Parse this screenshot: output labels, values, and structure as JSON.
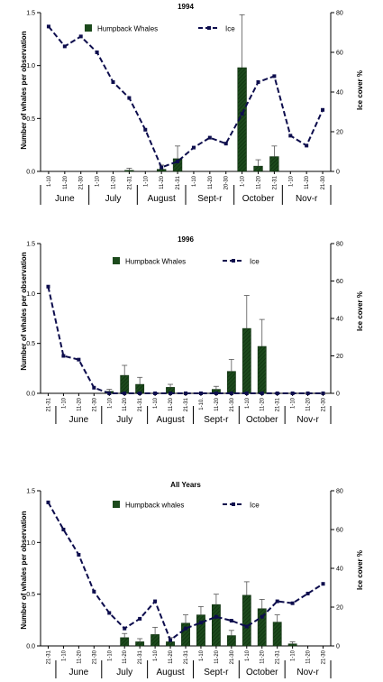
{
  "colors": {
    "bar": "#1c4a1c",
    "bar_dark": "#0c2a0c",
    "line": "#0d0d4d",
    "axis": "#000000"
  },
  "chart_data": [
    {
      "type": "bar+line",
      "title": "1994",
      "ylabel": "Number of whales per observation",
      "y2label": "Ice cover %",
      "ylim": [
        0,
        1.5
      ],
      "y2lim": [
        0,
        80
      ],
      "yticks": [
        "0.0",
        "0.5",
        "1.0",
        "1.5"
      ],
      "y2ticks": [
        "0",
        "20",
        "40",
        "60",
        "80"
      ],
      "legend": {
        "bar": "Humpback Whales",
        "line": "Ice"
      },
      "categories": [
        "1-10",
        "11-20",
        "21-30",
        "1-10",
        "11-20",
        "21-31",
        "1-10",
        "11-20",
        "21-31",
        "1-10",
        "11-20",
        "20-30",
        "1-10",
        "11-20",
        "21-31",
        "1-10",
        "11-20",
        "21-30"
      ],
      "months": [
        {
          "label": "June",
          "start": 0,
          "end": 2
        },
        {
          "label": "July",
          "start": 3,
          "end": 5
        },
        {
          "label": "August",
          "start": 6,
          "end": 8
        },
        {
          "label": "Sept-r",
          "start": 9,
          "end": 11
        },
        {
          "label": "October",
          "start": 12,
          "end": 14
        },
        {
          "label": "Nov-r",
          "start": 15,
          "end": 17
        }
      ],
      "bars": [
        null,
        null,
        null,
        null,
        null,
        0.01,
        null,
        0.02,
        0.12,
        null,
        null,
        null,
        0.98,
        0.05,
        0.14,
        null,
        null,
        null
      ],
      "bar_err": [
        0,
        0,
        0,
        0,
        0,
        0.02,
        0,
        0.04,
        0.12,
        0,
        0,
        0,
        0.5,
        0.06,
        0.1,
        0,
        0,
        0
      ],
      "ice": [
        73,
        63,
        68,
        60,
        45,
        37,
        21,
        2,
        5,
        12,
        17,
        14,
        29,
        45,
        48,
        18,
        13,
        31
      ]
    },
    {
      "type": "bar+line",
      "title": "1996",
      "ylabel": "Number of whales per observation",
      "y2label": "Ice cover %",
      "ylim": [
        0,
        1.5
      ],
      "y2lim": [
        0,
        80
      ],
      "yticks": [
        "0.0",
        "0.5",
        "1.0",
        "1.5"
      ],
      "y2ticks": [
        "0",
        "20",
        "40",
        "60",
        "80"
      ],
      "legend": {
        "bar": "Humpback Whales",
        "line": "Ice"
      },
      "categories": [
        "21-31",
        "1-10",
        "11-20",
        "21-30",
        "1-10",
        "11-20",
        "21-31",
        "1-10",
        "11-20",
        "21-31",
        "1-10.",
        "11-20",
        "21-30",
        "1-10",
        "11-20",
        "21-31",
        "1-10",
        "11-20",
        "21-30"
      ],
      "months": [
        {
          "label": "June",
          "start": 1,
          "end": 3
        },
        {
          "label": "July",
          "start": 4,
          "end": 6
        },
        {
          "label": "August",
          "start": 7,
          "end": 9
        },
        {
          "label": "Sept-r",
          "start": 10,
          "end": 12
        },
        {
          "label": "October",
          "start": 13,
          "end": 15
        },
        {
          "label": "Nov-r",
          "start": 16,
          "end": 18
        }
      ],
      "bars": [
        null,
        null,
        null,
        null,
        0.02,
        0.18,
        0.09,
        null,
        0.06,
        null,
        null,
        0.04,
        0.22,
        0.65,
        0.47,
        null,
        null,
        null,
        null
      ],
      "bar_err": [
        0,
        0,
        0,
        0,
        0.02,
        0.1,
        0.07,
        0,
        0.03,
        0,
        0,
        0.03,
        0.12,
        0.33,
        0.27,
        0,
        0,
        0,
        0
      ],
      "ice": [
        57,
        20,
        18,
        3,
        0,
        0,
        0,
        0,
        0,
        0,
        0,
        0,
        0,
        0,
        0,
        0,
        0,
        0,
        0
      ]
    },
    {
      "type": "bar+line",
      "title": "All Years",
      "ylabel": "Number of whales per observation",
      "y2label": "Ice cover %",
      "ylim": [
        0,
        1.5
      ],
      "y2lim": [
        0,
        80
      ],
      "yticks": [
        "0.0",
        "0.5",
        "1.0",
        "1.5"
      ],
      "y2ticks": [
        "0",
        "20",
        "40",
        "60",
        "80"
      ],
      "legend": {
        "bar": "Humpback whales",
        "line": "Ice"
      },
      "categories": [
        "21-31",
        "1-10",
        "11-20",
        "21-30",
        "1-10",
        "11-20",
        "21-31",
        "1-10",
        "11-20",
        "21-31",
        "1-10",
        "11-20",
        "21-30",
        "1-10",
        "11-20",
        "21-31",
        "1-10",
        "11-20",
        "21-30"
      ],
      "months": [
        {
          "label": "June",
          "start": 1,
          "end": 3
        },
        {
          "label": "July",
          "start": 4,
          "end": 6
        },
        {
          "label": "August",
          "start": 7,
          "end": 9
        },
        {
          "label": "Sept-r",
          "start": 10,
          "end": 12
        },
        {
          "label": "October",
          "start": 13,
          "end": 15
        },
        {
          "label": "Nov-r",
          "start": 16,
          "end": 18
        }
      ],
      "bars": [
        null,
        null,
        null,
        null,
        null,
        0.08,
        0.04,
        0.11,
        0.04,
        0.22,
        0.3,
        0.4,
        0.1,
        0.49,
        0.36,
        0.23,
        0.02,
        null,
        null
      ],
      "bar_err": [
        0,
        0,
        0,
        0,
        0,
        0.04,
        0.03,
        0.07,
        0.04,
        0.08,
        0.08,
        0.1,
        0.05,
        0.13,
        0.09,
        0.07,
        0.02,
        0,
        0
      ],
      "ice": [
        74,
        60,
        47,
        28,
        17,
        9,
        14,
        23,
        3,
        9,
        12,
        15,
        13,
        10,
        15,
        23,
        22,
        27,
        32
      ]
    }
  ]
}
